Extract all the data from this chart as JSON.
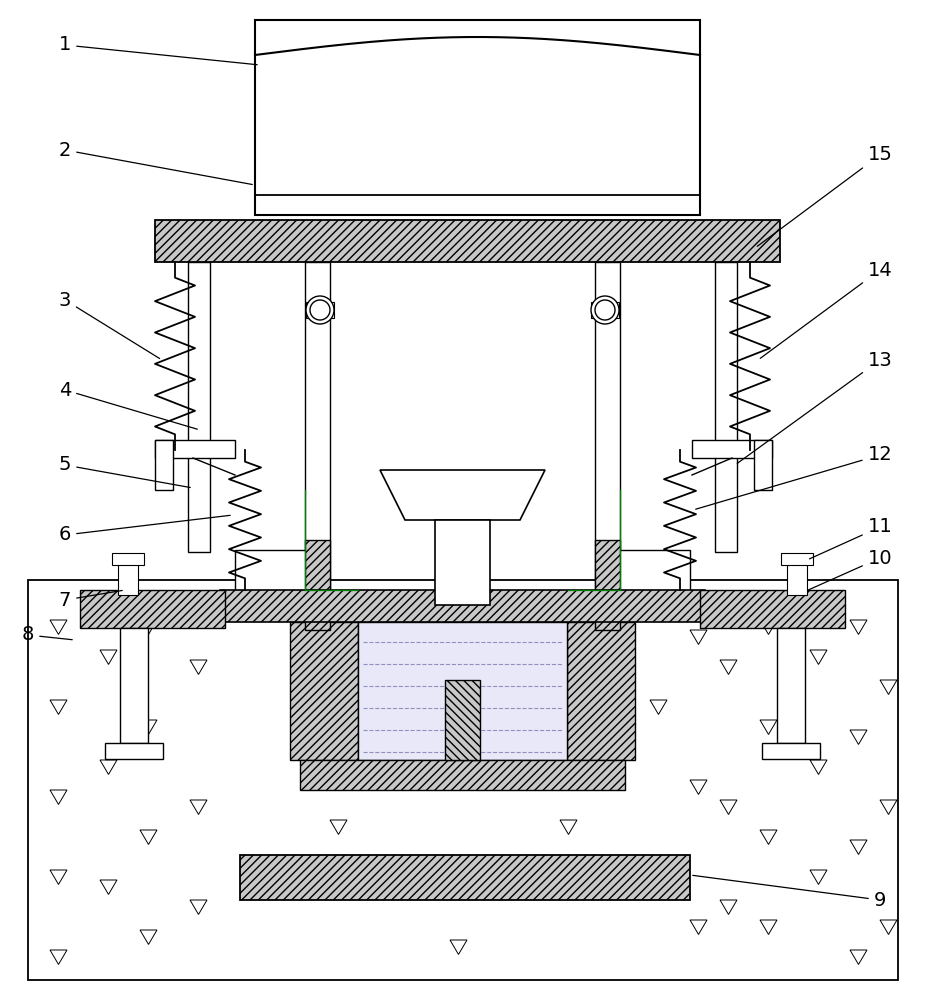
{
  "bg_color": "#ffffff",
  "line_color": "#000000",
  "labels_left": [
    "1",
    "2",
    "3",
    "4",
    "5",
    "6",
    "7",
    "8"
  ],
  "labels_right": [
    "15",
    "14",
    "13",
    "12",
    "11",
    "10",
    "9"
  ],
  "label_fontsize": 14
}
